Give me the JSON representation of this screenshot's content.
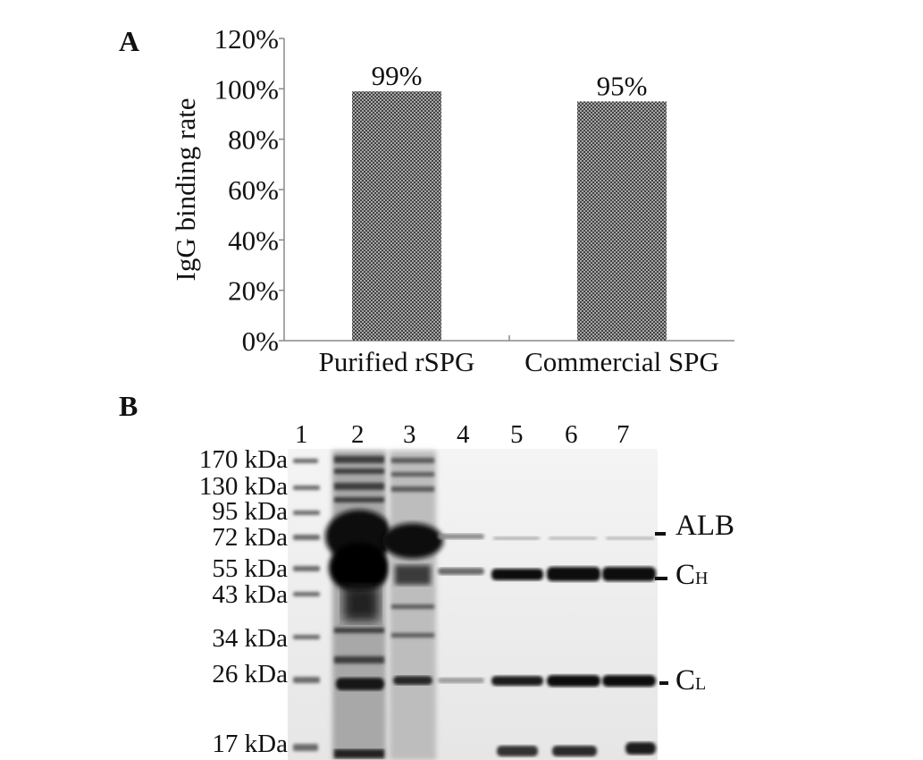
{
  "panel_a": {
    "label": "A"
  },
  "panel_b": {
    "label": "B"
  },
  "chart_data": {
    "type": "bar",
    "title": "",
    "xlabel": "",
    "ylabel": "IgG binding rate",
    "categories": [
      "Purified rSPG",
      "Commercial SPG"
    ],
    "values": [
      99,
      95
    ],
    "data_labels": [
      "99%",
      "95%"
    ],
    "ylim": [
      0,
      120
    ],
    "yticks": [
      "0%",
      "20%",
      "40%",
      "60%",
      "80%",
      "100%",
      "120%"
    ],
    "grid": false,
    "fill": "crosshatch",
    "bar_color": "#555555"
  },
  "gel": {
    "lanes": [
      "1",
      "2",
      "3",
      "4",
      "5",
      "6",
      "7"
    ],
    "markers": [
      "170 kDa",
      "130 kDa",
      "95 kDa",
      "72 kDa",
      "55 kDa",
      "43 kDa",
      "34 kDa",
      "26 kDa",
      "17 kDa"
    ],
    "bands": [
      {
        "main": "ALB",
        "sub": ""
      },
      {
        "main": "C",
        "sub": "H"
      },
      {
        "main": "C",
        "sub": "L"
      }
    ]
  }
}
